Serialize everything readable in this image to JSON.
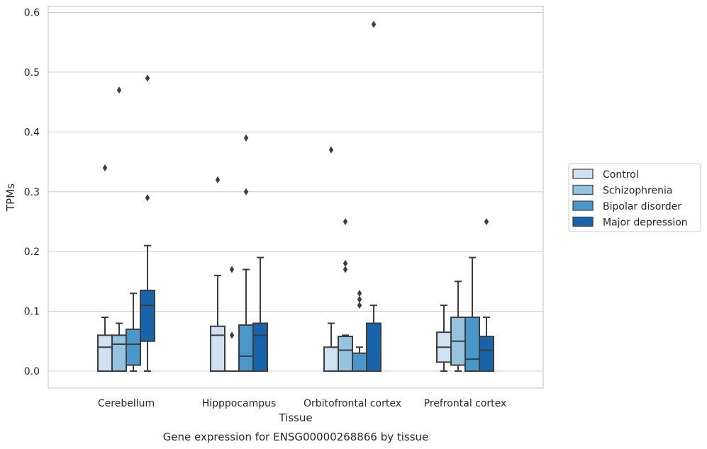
{
  "caption": "Gene expression for ENSG00000268866 by tissue",
  "colors": {
    "Control": "#d0e1f2",
    "Schizophrenia": "#94c4df",
    "Bipolar disorder": "#4a98c9",
    "Major depression": "#1764ab",
    "box_line": "#3d3d3d",
    "grid": "#cccccc",
    "frame": "#cccccc"
  },
  "chart_data": {
    "type": "box",
    "xlabel": "Tissue",
    "ylabel": "TPMs",
    "ylim": [
      -0.028,
      0.612
    ],
    "yticks": [
      0.0,
      0.1,
      0.2,
      0.3,
      0.4,
      0.5,
      0.6
    ],
    "ytick_labels": [
      "0.0",
      "0.1",
      "0.2",
      "0.3",
      "0.4",
      "0.5",
      "0.6"
    ],
    "grid": true,
    "legend_position": "right",
    "categories": [
      "Cerebellum",
      "Hipppocampus",
      "Orbitofrontal cortex",
      "Prefrontal cortex"
    ],
    "series": [
      {
        "name": "Control",
        "boxes": [
          {
            "whislo": 0.0,
            "q1": 0.0,
            "med": 0.04,
            "q3": 0.06,
            "whishi": 0.09,
            "fliers": [
              0.34
            ]
          },
          {
            "whislo": 0.0,
            "q1": 0.0,
            "med": 0.06,
            "q3": 0.075,
            "whishi": 0.16,
            "fliers": [
              0.32
            ]
          },
          {
            "whislo": 0.0,
            "q1": 0.0,
            "med": 0.0,
            "q3": 0.04,
            "whishi": 0.08,
            "fliers": [
              0.37
            ]
          },
          {
            "whislo": 0.0,
            "q1": 0.015,
            "med": 0.04,
            "q3": 0.065,
            "whishi": 0.11,
            "fliers": []
          }
        ]
      },
      {
        "name": "Schizophrenia",
        "boxes": [
          {
            "whislo": 0.0,
            "q1": 0.0,
            "med": 0.045,
            "q3": 0.06,
            "whishi": 0.08,
            "fliers": [
              0.47
            ]
          },
          {
            "whislo": 0.0,
            "q1": 0.0,
            "med": 0.0,
            "q3": 0.0,
            "whishi": 0.0,
            "fliers": [
              0.06,
              0.17
            ]
          },
          {
            "whislo": 0.0,
            "q1": 0.0,
            "med": 0.035,
            "q3": 0.058,
            "whishi": 0.06,
            "fliers": [
              0.17,
              0.18,
              0.25
            ]
          },
          {
            "whislo": 0.0,
            "q1": 0.01,
            "med": 0.05,
            "q3": 0.09,
            "whishi": 0.15,
            "fliers": []
          }
        ]
      },
      {
        "name": "Bipolar disorder",
        "boxes": [
          {
            "whislo": 0.0,
            "q1": 0.01,
            "med": 0.045,
            "q3": 0.07,
            "whishi": 0.13,
            "fliers": []
          },
          {
            "whislo": 0.0,
            "q1": 0.0,
            "med": 0.025,
            "q3": 0.077,
            "whishi": 0.17,
            "fliers": [
              0.3,
              0.39
            ]
          },
          {
            "whislo": 0.0,
            "q1": 0.0,
            "med": 0.0,
            "q3": 0.03,
            "whishi": 0.04,
            "fliers": [
              0.11,
              0.12,
              0.13
            ]
          },
          {
            "whislo": 0.0,
            "q1": 0.0,
            "med": 0.02,
            "q3": 0.09,
            "whishi": 0.19,
            "fliers": []
          }
        ]
      },
      {
        "name": "Major depression",
        "boxes": [
          {
            "whislo": 0.0,
            "q1": 0.05,
            "med": 0.11,
            "q3": 0.135,
            "whishi": 0.21,
            "fliers": [
              0.29,
              0.49
            ]
          },
          {
            "whislo": 0.0,
            "q1": 0.0,
            "med": 0.06,
            "q3": 0.08,
            "whishi": 0.19,
            "fliers": []
          },
          {
            "whislo": 0.0,
            "q1": 0.0,
            "med": 0.0,
            "q3": 0.08,
            "whishi": 0.11,
            "fliers": [
              0.58
            ]
          },
          {
            "whislo": 0.0,
            "q1": 0.0,
            "med": 0.035,
            "q3": 0.058,
            "whishi": 0.09,
            "fliers": [
              0.25
            ]
          }
        ]
      }
    ]
  }
}
